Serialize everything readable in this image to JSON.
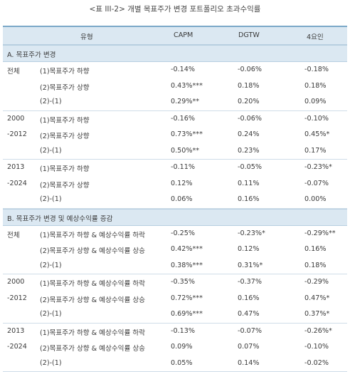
{
  "title": "<표 III-2> 개별 목표주가 변경 포트폴리오 초과수익률",
  "headers": [
    "유형",
    "CAPM",
    "DGTW",
    "4요인"
  ],
  "sections": [
    {
      "label": "A. 목표주가 변경",
      "groups": [
        {
          "rows": [
            {
              "period": "전체",
              "type": "(1)목표주가 하향",
              "capm": "-0.14%",
              "dgtw": "-0.06%",
              "f4": "-0.18%"
            },
            {
              "period": "",
              "type": "(2)목표주가 상향",
              "capm": "0.43%***",
              "dgtw": "0.18%",
              "f4": "0.18%"
            },
            {
              "period": "",
              "type": "(2)-(1)",
              "capm": "0.29%**",
              "dgtw": "0.20%",
              "f4": "0.09%"
            }
          ]
        },
        {
          "rows": [
            {
              "period": "2000",
              "type": "(1)목표주가 하향",
              "capm": "-0.16%",
              "dgtw": "-0.06%",
              "f4": "-0.10%"
            },
            {
              "period": "-2012",
              "type": "(2)목표주가 상향",
              "capm": "0.73%***",
              "dgtw": "0.24%",
              "f4": "0.45%*"
            },
            {
              "period": "",
              "type": "(2)-(1)",
              "capm": "0.50%**",
              "dgtw": "0.23%",
              "f4": "0.17%"
            }
          ]
        },
        {
          "rows": [
            {
              "period": "2013",
              "type": "(1)목표주가 하향",
              "capm": "-0.11%",
              "dgtw": "-0.05%",
              "f4": "-0.23%*"
            },
            {
              "period": "-2024",
              "type": "(2)목표주가 상향",
              "capm": "0.12%",
              "dgtw": "0.11%",
              "f4": "-0.07%"
            },
            {
              "period": "",
              "type": "(2)-(1)",
              "capm": "0.06%",
              "dgtw": "0.16%",
              "f4": "0.00%"
            }
          ]
        }
      ]
    },
    {
      "label": "B. 목표주가 변경 및 예상수익률 증감",
      "groups": [
        {
          "rows": [
            {
              "period": "전체",
              "type": "(1)목표주가 하향 & 예상수익률 하락",
              "capm": "-0.25%",
              "dgtw": "-0.23%*",
              "f4": "-0.29%**"
            },
            {
              "period": "",
              "type": "(2)목표주가 상향 & 예상수익률 상승",
              "capm": "0.42%***",
              "dgtw": "0.12%",
              "f4": "0.16%"
            },
            {
              "period": "",
              "type": "(2)-(1)",
              "capm": "0.38%***",
              "dgtw": "0.31%*",
              "f4": "0.18%"
            }
          ]
        },
        {
          "rows": [
            {
              "period": "2000",
              "type": "(1)목표주가 하향 & 예상수익률 하락",
              "capm": "-0.35%",
              "dgtw": "-0.37%",
              "f4": "-0.29%"
            },
            {
              "period": "-2012",
              "type": "(2)목표주가 상향 & 예상수익률 상승",
              "capm": "0.72%***",
              "dgtw": "0.16%",
              "f4": "0.47%*"
            },
            {
              "period": "",
              "type": "(2)-(1)",
              "capm": "0.69%***",
              "dgtw": "0.47%",
              "f4": "0.37%*"
            }
          ]
        },
        {
          "rows": [
            {
              "period": "2013",
              "type": "(1)목표주가 하향 & 예상수익률 하락",
              "capm": "-0.13%",
              "dgtw": "-0.07%",
              "f4": "-0.26%*"
            },
            {
              "period": "-2024",
              "type": "(2)목표주가 상향 & 예상수익률 상승",
              "capm": "0.09%",
              "dgtw": "0.07%",
              "f4": "-0.10%"
            },
            {
              "period": "",
              "type": "(2)-(1)",
              "capm": "0.05%",
              "dgtw": "0.14%",
              "f4": "-0.02%"
            }
          ]
        }
      ]
    }
  ]
}
